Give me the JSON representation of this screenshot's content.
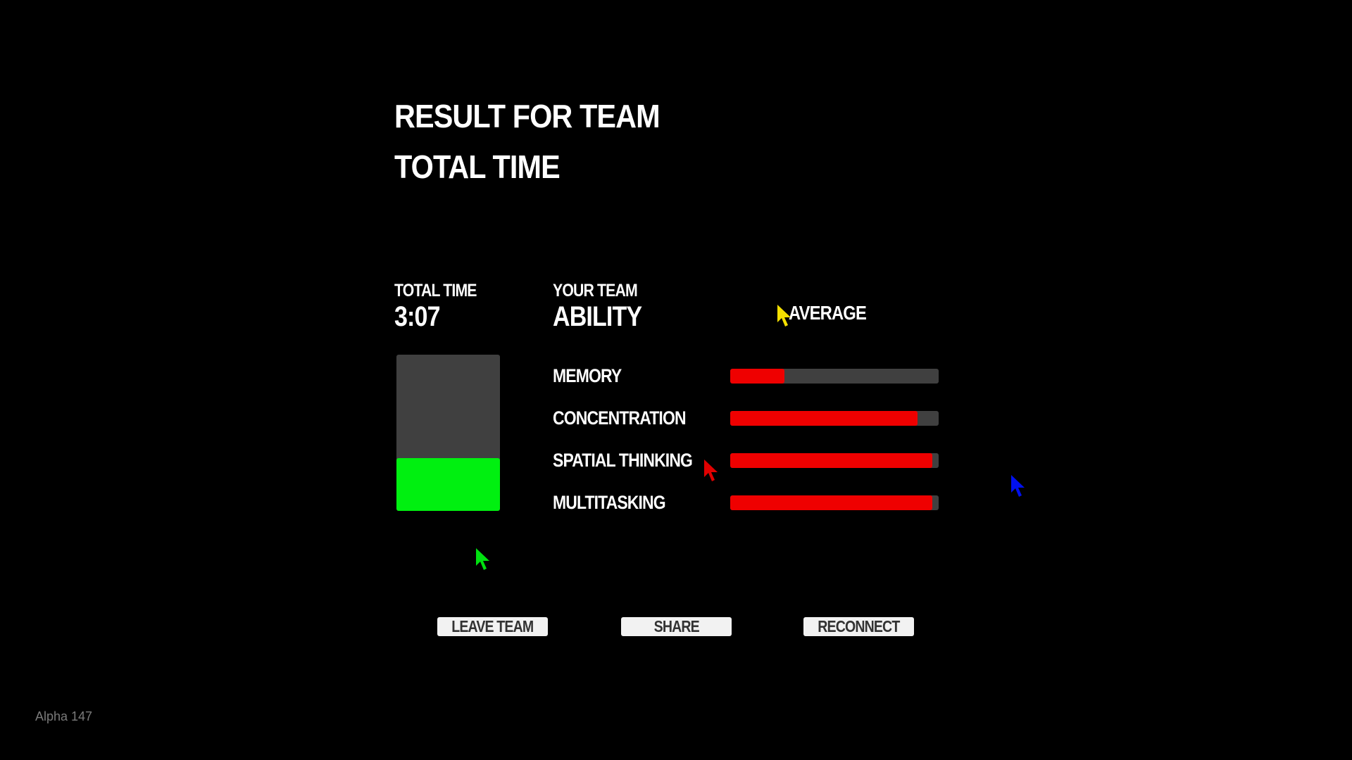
{
  "header": {
    "title": "RESULT FOR TEAM",
    "subtitle": "TOTAL TIME"
  },
  "time": {
    "label": "TOTAL TIME",
    "value": "3:07",
    "fill_fraction": 0.34,
    "fill_color": "#00f010"
  },
  "ability": {
    "label_small": "YOUR TEAM",
    "label_big": "ABILITY",
    "average_label": "AVERAGE",
    "bar_color": "#ef0000",
    "items": [
      {
        "label": "MEMORY",
        "value": 0.26
      },
      {
        "label": "CONCENTRATION",
        "value": 0.9
      },
      {
        "label": "SPATIAL THINKING",
        "value": 0.97
      },
      {
        "label": "MULTITASKING",
        "value": 0.97
      }
    ]
  },
  "buttons": {
    "leave": "LEAVE TEAM",
    "share": "SHARE",
    "reconnect": "RECONNECT"
  },
  "version": "Alpha 147",
  "cursors": [
    {
      "name": "yellow",
      "color": "#f5e000"
    },
    {
      "name": "red",
      "color": "#e00000"
    },
    {
      "name": "blue",
      "color": "#0010f0"
    },
    {
      "name": "green",
      "color": "#00e010"
    }
  ]
}
